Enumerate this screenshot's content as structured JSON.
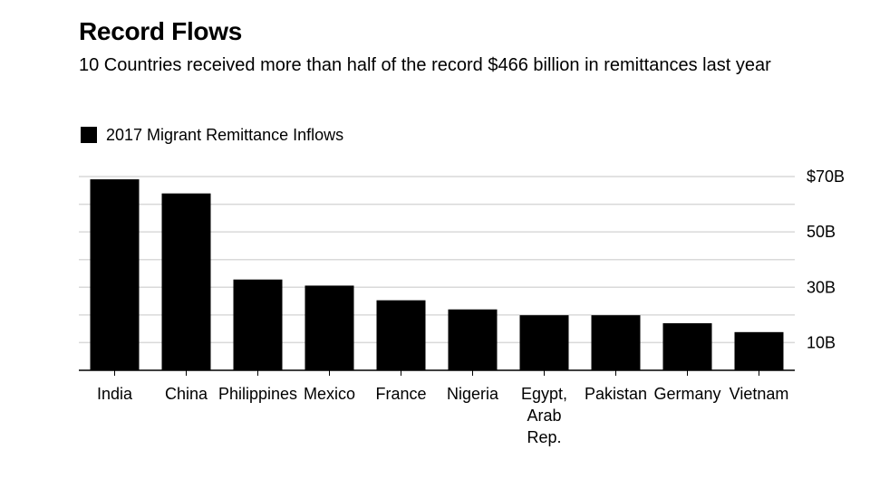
{
  "header": {
    "title": "Record Flows",
    "subtitle": "10 Countries received more than half of the record $466 billion in remittances last year"
  },
  "chart_data": {
    "type": "bar",
    "title": "Record Flows",
    "subtitle": "10 Countries received more than half of the record $466 billion in remittances last year",
    "categories": [
      "India",
      "China",
      "Philippines",
      "Mexico",
      "France",
      "Nigeria",
      "Egypt, Arab Rep.",
      "Pakistan",
      "Germany",
      "Vietnam"
    ],
    "series": [
      {
        "name": "2017 Migrant Remittance Inflows",
        "values": [
          69,
          63.9,
          32.8,
          30.6,
          25.3,
          22,
          19.9,
          19.9,
          17,
          13.8
        ]
      }
    ],
    "y_tick_labels": [
      "10B",
      "30B",
      "50B",
      "$70B"
    ],
    "y_ticks": [
      10,
      30,
      50,
      70
    ],
    "ylim": [
      0,
      70
    ],
    "gridlines_at": [
      10,
      20,
      30,
      40,
      50,
      60,
      70
    ],
    "y_axis_side": "right",
    "grid": true,
    "legend_position": "top-left",
    "bar_color": "#000000",
    "grid_color": "#d9d9d9"
  }
}
